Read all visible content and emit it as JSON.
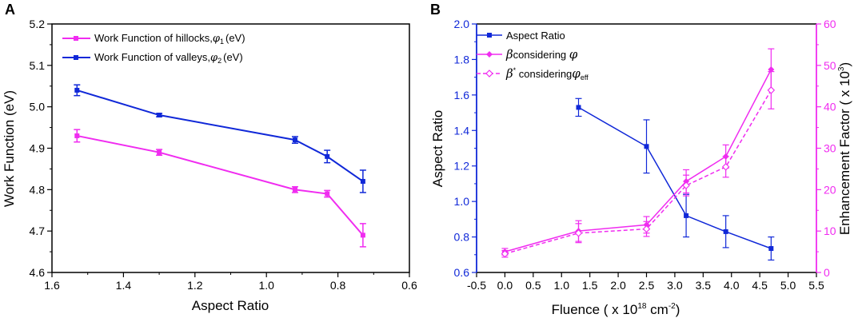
{
  "colors": {
    "magenta": "#f02cf0",
    "blue": "#1028d8",
    "axis": "#000000"
  },
  "chart_data": [
    {
      "panel": "A",
      "type": "line",
      "xlabel": "Aspect Ratio",
      "ylabel": "Work Function (eV)",
      "xlim": [
        1.6,
        0.6
      ],
      "ylim": [
        4.6,
        5.2
      ],
      "x_ticks": [
        "1.6",
        "1.4",
        "1.2",
        "1.0",
        "0.8",
        "0.6"
      ],
      "y_ticks": [
        "4.6",
        "4.7",
        "4.8",
        "4.9",
        "5.0",
        "5.1",
        "5.2"
      ],
      "series": [
        {
          "name": "Work Function of hillocks,",
          "symbol": "φ",
          "sub": "1",
          "unit": "(eV)",
          "color": "#f02cf0",
          "x": [
            1.53,
            1.3,
            0.92,
            0.83,
            0.73
          ],
          "y": [
            4.93,
            4.89,
            4.8,
            4.79,
            4.69
          ],
          "err": [
            0.015,
            0.007,
            0.007,
            0.008,
            0.028
          ]
        },
        {
          "name": "Work Function of valleys,",
          "symbol": "φ",
          "sub": "2",
          "unit": "(eV)",
          "color": "#1028d8",
          "x": [
            1.53,
            1.3,
            0.92,
            0.83,
            0.73
          ],
          "y": [
            5.04,
            4.98,
            4.92,
            4.88,
            4.82
          ],
          "err": [
            0.013,
            0.004,
            0.008,
            0.015,
            0.027
          ]
        }
      ]
    },
    {
      "panel": "B",
      "type": "line",
      "xlabel_main": "Fluence ( x 10",
      "xlabel_exp": "18",
      "xlabel_unit": " cm",
      "xlabel_unit_exp": "-2",
      "xlabel_end": ")",
      "ylabel_left": "Aspect Ratio",
      "ylabel_right_main": "Enhancement Factor ( x 10",
      "ylabel_right_exp": "3",
      "ylabel_right_end": ")",
      "xlim": [
        -0.5,
        5.5
      ],
      "ylim_left": [
        0.6,
        2.0
      ],
      "ylim_right": [
        0,
        60
      ],
      "x_ticks": [
        "-0.5",
        "0.0",
        "0.5",
        "1.0",
        "1.5",
        "2.0",
        "2.5",
        "3.0",
        "3.5",
        "4.0",
        "4.5",
        "5.0",
        "5.5"
      ],
      "y_left_ticks": [
        "0.6",
        "0.8",
        "1.0",
        "1.2",
        "1.4",
        "1.6",
        "1.8",
        "2.0"
      ],
      "y_right_ticks": [
        "0",
        "10",
        "20",
        "30",
        "40",
        "50",
        "60"
      ],
      "series": [
        {
          "name": "Aspect Ratio",
          "axis": "left",
          "style": "solid",
          "color": "#1028d8",
          "x": [
            1.3,
            2.5,
            3.2,
            3.9,
            4.7
          ],
          "y": [
            1.53,
            1.31,
            0.92,
            0.83,
            0.735
          ],
          "err": [
            0.05,
            0.15,
            0.12,
            0.09,
            0.065
          ]
        },
        {
          "name": "β considering φ",
          "label_prefix": "β",
          "label_mid": "considering ",
          "label_sym": "φ",
          "axis": "right",
          "style": "solid",
          "color": "#f02cf0",
          "x": [
            0.0,
            1.3,
            2.5,
            3.2,
            3.9,
            4.7
          ],
          "y": [
            5.0,
            10.0,
            11.5,
            22.0,
            28.0,
            49.0
          ],
          "err": [
            0.8,
            2.5,
            2.0,
            2.8,
            2.8,
            5.0
          ]
        },
        {
          "name": "β* considering φeff",
          "label_prefix": "β",
          "label_sup": "*",
          "label_mid": " considering",
          "label_sym": "φ",
          "label_sub": "eff",
          "axis": "right",
          "style": "dashed",
          "color": "#f02cf0",
          "x": [
            0.0,
            1.3,
            2.5,
            3.2,
            3.9,
            4.7
          ],
          "y": [
            4.5,
            9.5,
            10.5,
            21.0,
            25.5,
            44.0
          ],
          "err": [
            0.8,
            2.3,
            1.8,
            2.5,
            2.5,
            4.5
          ]
        }
      ]
    }
  ]
}
